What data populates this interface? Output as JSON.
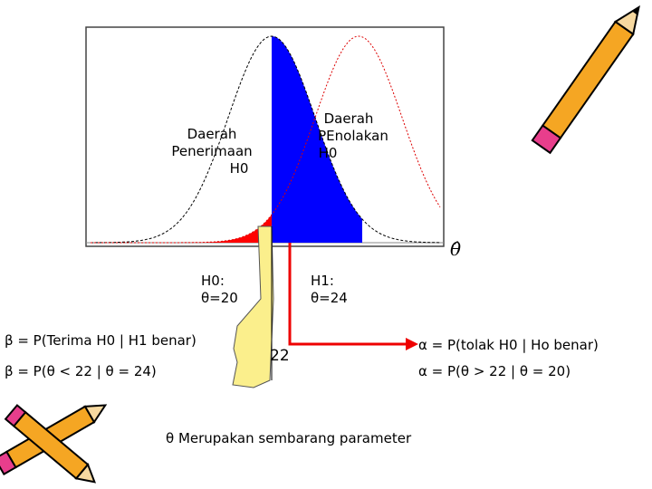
{
  "diagram": {
    "accept_label": [
      "Daerah",
      "Penerimaan",
      "H0"
    ],
    "reject_label": [
      "Daerah",
      "PEnolakan",
      "H0"
    ],
    "axis_label": "θ̂",
    "h0": [
      "H0:",
      "θ=20"
    ],
    "h1": [
      "H1:",
      "θ=24"
    ],
    "beta_def": "β = P(Terima H0 | H1 benar)",
    "beta_expr": "β = P(θ < 22 | θ = 24)",
    "critical_value": "22",
    "alpha_def": "α = P(tolak H0 | Ho benar)",
    "alpha_expr": "α = P(θ > 22 | θ = 20)",
    "note": "θ Merupakan sembarang parameter"
  }
}
